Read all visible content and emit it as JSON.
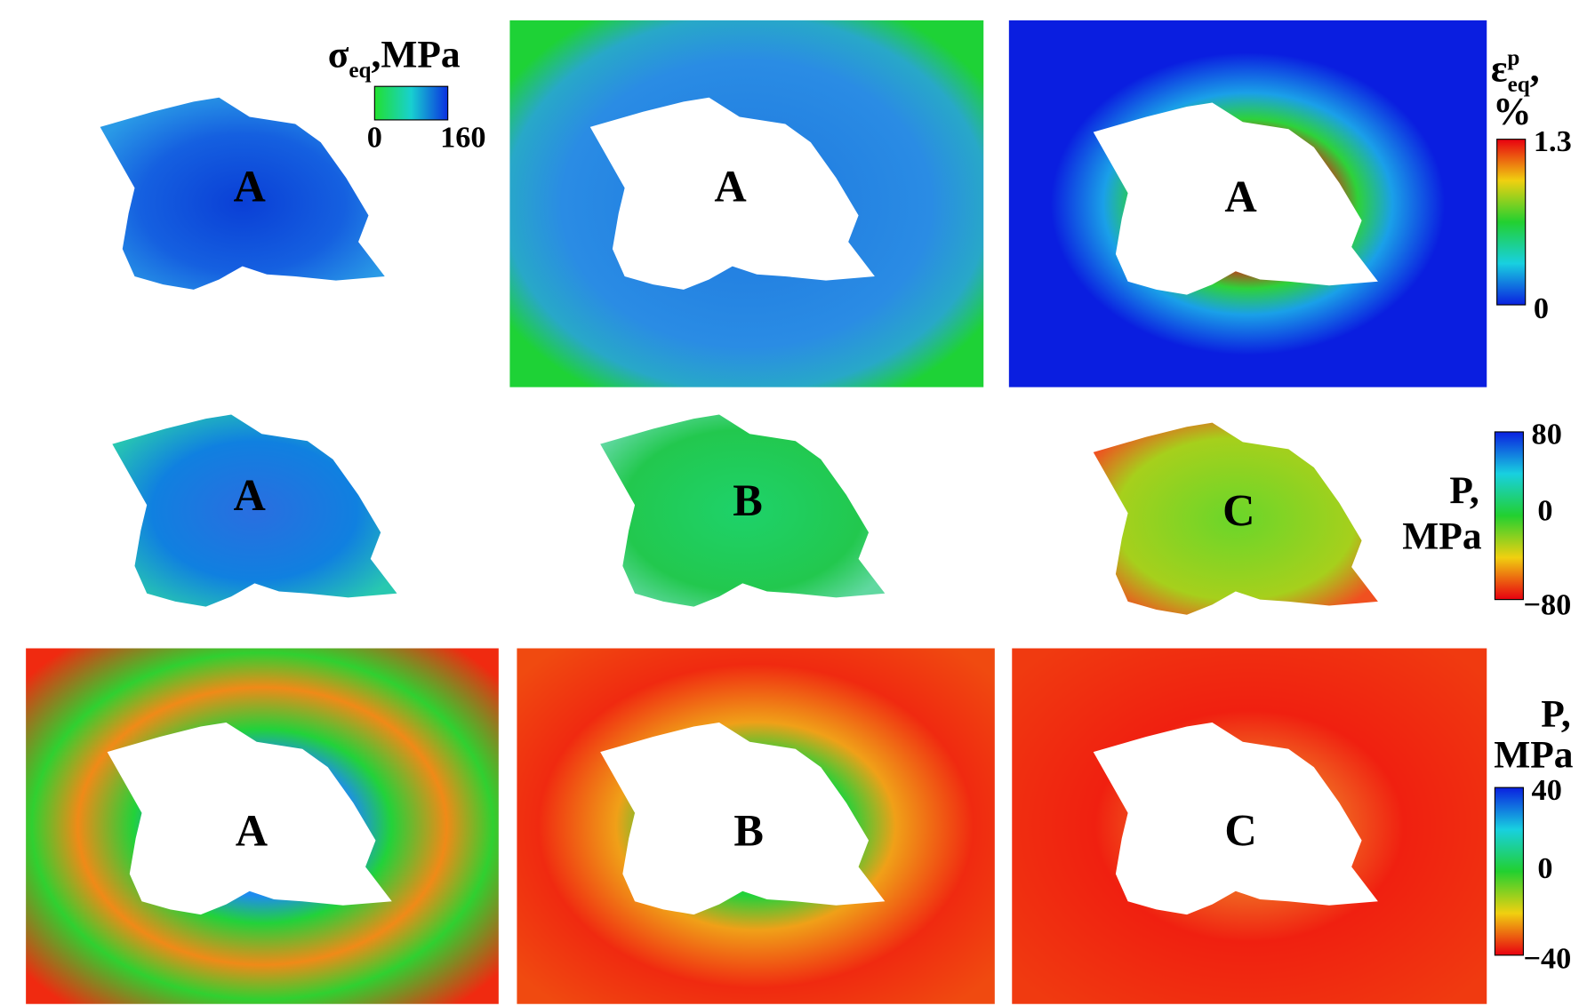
{
  "panels": [
    {
      "label": "A"
    },
    {
      "label": "A"
    },
    {
      "label": "A"
    },
    {
      "label": "A"
    },
    {
      "label": "B"
    },
    {
      "label": "C"
    },
    {
      "label": "A"
    },
    {
      "label": "B"
    },
    {
      "label": "C"
    }
  ],
  "colorbars": [
    {
      "symbol": "σ",
      "subscript": "eq",
      "unit": ",MPa",
      "ticks": [
        "0",
        "160"
      ]
    },
    {
      "symbol": "ε",
      "superscript": "p",
      "subscript": "eq",
      "unit": ",",
      "unit2": "%",
      "ticks": [
        "1.3",
        "0"
      ]
    },
    {
      "symbol": "P,",
      "unit": "MPa",
      "ticks": [
        "80",
        "0",
        "−80"
      ]
    },
    {
      "symbol": "P,",
      "unit": "MPa",
      "ticks": [
        "40",
        "0",
        "−40"
      ]
    }
  ]
}
